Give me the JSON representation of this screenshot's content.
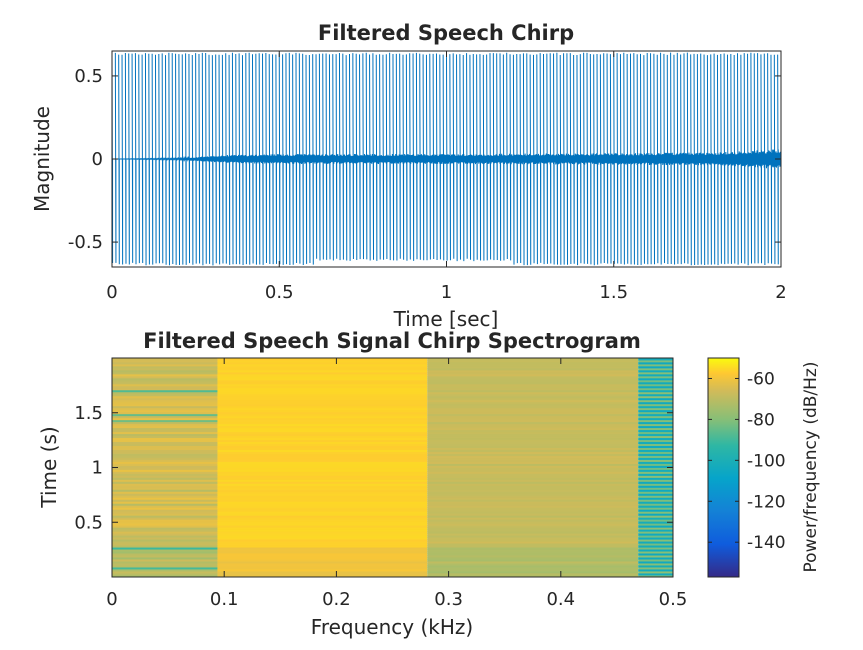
{
  "chart_data": [
    {
      "type": "line",
      "title": "Filtered Speech Chirp",
      "xlabel": "Time [sec]",
      "ylabel": "Magnitude",
      "xlim": [
        0,
        2
      ],
      "ylim": [
        -0.65,
        0.65
      ],
      "xticks": [
        0,
        0.5,
        1,
        1.5,
        2
      ],
      "xtick_labels": [
        "0",
        "0.5",
        "1",
        "1.5",
        "2"
      ],
      "yticks": [
        0.5,
        0,
        -0.5
      ],
      "ytick_labels": [
        "0.5",
        "0",
        "-0.5"
      ],
      "grid": false,
      "color": "#0072BD",
      "signal": {
        "impulse_count": 200,
        "impulse_amplitude": 0.64,
        "baseline_envelope": {
          "t": [
            0,
            0.2,
            0.35,
            0.5,
            1.0,
            1.5,
            1.8,
            1.9,
            2.0
          ],
          "amp": [
            0.0,
            0.005,
            0.025,
            0.03,
            0.03,
            0.035,
            0.04,
            0.05,
            0.06
          ]
        }
      }
    },
    {
      "type": "heatmap",
      "title": "Filtered Speech Signal Chirp Spectrogram",
      "xlabel": "Frequency (kHz)",
      "ylabel": "Time (s)",
      "xlim": [
        0,
        0.5
      ],
      "ylim": [
        0,
        2
      ],
      "xticks": [
        0,
        0.1,
        0.2,
        0.3,
        0.4,
        0.5
      ],
      "xtick_labels": [
        "0",
        "0.1",
        "0.2",
        "0.3",
        "0.4",
        "0.5"
      ],
      "yticks": [
        0.5,
        1,
        1.5
      ],
      "ytick_labels": [
        "0.5",
        "1",
        "1.5"
      ],
      "colormap": "parula",
      "frequency_bins": [
        {
          "f_start": 0.0,
          "f_end": 0.094,
          "mean_db": -66,
          "variation_db": 10
        },
        {
          "f_start": 0.094,
          "f_end": 0.281,
          "mean_db": -56,
          "variation_db": 2
        },
        {
          "f_start": 0.281,
          "f_end": 0.469,
          "mean_db": -68,
          "variation_db": 4
        },
        {
          "f_start": 0.469,
          "f_end": 0.5,
          "mean_db": -95,
          "variation_db": 30
        }
      ],
      "early_segment": {
        "t_end": 0.27,
        "offset_db": -6
      },
      "colorbar": {
        "label": "Power/frequency (dB/Hz)",
        "range": [
          -157,
          -50
        ],
        "ticks": [
          -60,
          -80,
          -100,
          -120,
          -140
        ],
        "tick_labels": [
          "-60",
          "-80",
          "-100",
          "-120",
          "-140"
        ]
      }
    }
  ]
}
